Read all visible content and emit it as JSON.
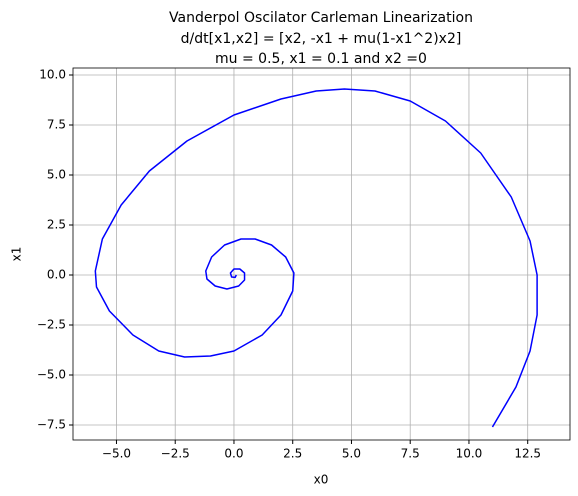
{
  "chart_data": {
    "type": "line",
    "title": [
      "Vanderpol Oscilator Carleman Linearization",
      "d/dt[x1,x2] = [x2, -x1 + mu(1-x1^2)x2]",
      "mu = 0.5, x1 = 0.1 and x2 =0"
    ],
    "xlabel": "x0",
    "ylabel": "x1",
    "color": "#0000ff",
    "grid": true,
    "x": [
      0.1,
      0.05,
      -0.1,
      -0.15,
      0,
      0.25,
      0.45,
      0.45,
      0.2,
      -0.3,
      -0.8,
      -1.15,
      -1.2,
      -0.95,
      -0.4,
      0.3,
      0.9,
      1.6,
      2.2,
      2.55,
      2.5,
      2.0,
      1.2,
      0,
      -1.0,
      -2.1,
      -3.2,
      -4.3,
      -5.3,
      -5.85,
      -5.9,
      -5.6,
      -4.8,
      -3.6,
      -2.0,
      0,
      2.0,
      3.5,
      4.7,
      6.0,
      7.5,
      9.0,
      10.5,
      11.8,
      12.6,
      12.9,
      12.9,
      12.6,
      12.0,
      11.0
    ],
    "y": [
      0,
      -0.12,
      -0.1,
      0.1,
      0.3,
      0.3,
      0.1,
      -0.25,
      -0.55,
      -0.7,
      -0.55,
      -0.2,
      0.2,
      0.9,
      1.5,
      1.8,
      1.8,
      1.5,
      0.9,
      0.1,
      -0.8,
      -2.0,
      -3.0,
      -3.8,
      -4.05,
      -4.1,
      -3.8,
      -3.0,
      -1.8,
      -0.6,
      0.2,
      1.8,
      3.5,
      5.2,
      6.7,
      8.0,
      8.8,
      9.2,
      9.3,
      9.2,
      8.7,
      7.7,
      6.1,
      3.9,
      1.7,
      0,
      -2.0,
      -3.8,
      -5.6,
      -7.6
    ],
    "xlim": [
      -6.85,
      14.3
    ],
    "ylim": [
      -8.25,
      10.35
    ],
    "xticks": [
      {
        "value": -5,
        "label": "−5.0"
      },
      {
        "value": -2.5,
        "label": "−2.5"
      },
      {
        "value": 0,
        "label": "0.0"
      },
      {
        "value": 2.5,
        "label": "2.5"
      },
      {
        "value": 5,
        "label": "5.0"
      },
      {
        "value": 7.5,
        "label": "7.5"
      },
      {
        "value": 10,
        "label": "10.0"
      },
      {
        "value": 12.5,
        "label": "12.5"
      }
    ],
    "yticks": [
      {
        "value": -7.5,
        "label": "−7.5"
      },
      {
        "value": -5,
        "label": "−5.0"
      },
      {
        "value": -2.5,
        "label": "−2.5"
      },
      {
        "value": 0,
        "label": "0.0"
      },
      {
        "value": 2.5,
        "label": "2.5"
      },
      {
        "value": 5,
        "label": "5.0"
      },
      {
        "value": 7.5,
        "label": "7.5"
      },
      {
        "value": 10,
        "label": "10.0"
      }
    ]
  }
}
